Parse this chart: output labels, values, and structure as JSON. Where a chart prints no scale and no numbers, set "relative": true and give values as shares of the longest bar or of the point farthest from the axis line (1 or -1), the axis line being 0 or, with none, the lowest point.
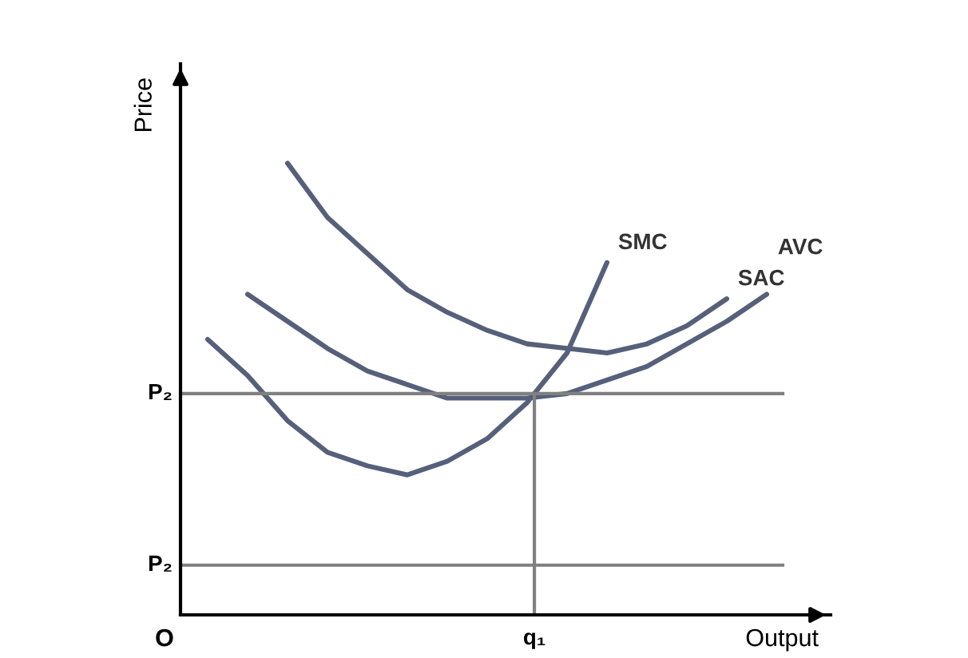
{
  "chart_data": {
    "type": "line",
    "relative": true,
    "xlabel": "Output",
    "ylabel": "Price",
    "categories": [
      null,
      null,
      null,
      null,
      null,
      null,
      null,
      null,
      null,
      null,
      null,
      null,
      null,
      null,
      null
    ],
    "series": [
      {
        "name": "SMC",
        "color": "#56607a",
        "values": [
          0.61,
          0.53,
          0.43,
          0.36,
          0.33,
          0.31,
          0.34,
          0.39,
          0.47,
          0.58,
          0.78,
          null,
          null,
          null,
          null
        ]
      },
      {
        "name": "SAC",
        "color": "#56607a",
        "values": [
          null,
          null,
          1.0,
          0.88,
          0.8,
          0.72,
          0.67,
          0.63,
          0.6,
          0.59,
          0.58,
          0.6,
          0.64,
          0.7,
          null
        ]
      },
      {
        "name": "AVC",
        "color": "#56607a",
        "values": [
          null,
          0.71,
          0.65,
          0.59,
          0.54,
          0.51,
          0.48,
          0.48,
          0.48,
          0.49,
          0.52,
          0.55,
          0.6,
          0.65,
          0.71
        ]
      }
    ],
    "ref_lines": [
      {
        "axis": "y",
        "value": 0.49,
        "label": "P₂",
        "color": "#808080"
      },
      {
        "axis": "y",
        "value": 0.11,
        "label": "P₂",
        "color": "#808080"
      }
    ],
    "annotations": [
      "O",
      "q₁"
    ],
    "marker": "none",
    "line_style": "solid",
    "grid": false,
    "legend": false
  }
}
